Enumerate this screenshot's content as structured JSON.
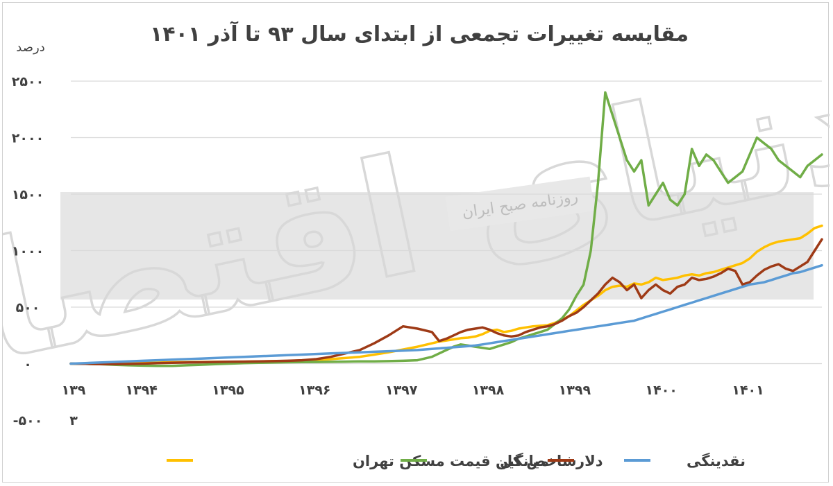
{
  "chart_data": {
    "type": "line",
    "title": "مقایسه تغییرات تجمعی از ابتدای سال ۹۳ تا آذر ۱۴۰۱",
    "ylabel": "درصد",
    "xlabel": "",
    "ylim": [
      -500,
      2500
    ],
    "y_ticks": [
      -500,
      0,
      500,
      1000,
      1500,
      2000,
      2500
    ],
    "y_tick_labels": [
      "-۵۰۰",
      "۰",
      "۵۰۰",
      "۱۰۰۰",
      "۱۵۰۰",
      "۲۰۰۰",
      "۲۵۰۰"
    ],
    "x_range": [
      0,
      104
    ],
    "x_ticks": [
      0,
      9,
      21,
      33,
      45,
      57,
      69,
      81,
      93
    ],
    "x_tick_labels": [
      "۱۳۹\n۳",
      "۱۳۹۴",
      "۱۳۹۵",
      "۱۳۹۶",
      "۱۳۹۷",
      "۱۳۹۸",
      "۱۳۹۹",
      "۱۴۰۰",
      "۱۴۰۱"
    ],
    "grid": true,
    "legend_position": "bottom",
    "x": [
      0,
      2,
      4,
      6,
      8,
      10,
      12,
      14,
      16,
      18,
      20,
      22,
      24,
      26,
      28,
      30,
      32,
      34,
      36,
      38,
      40,
      42,
      44,
      46,
      48,
      50,
      51,
      52,
      53,
      54,
      55,
      56,
      57,
      58,
      59,
      60,
      61,
      62,
      63,
      64,
      65,
      66,
      67,
      68,
      69,
      70,
      71,
      72,
      73,
      74,
      75,
      76,
      77,
      78,
      79,
      80,
      81,
      82,
      83,
      84,
      85,
      86,
      87,
      88,
      89,
      90,
      91,
      92,
      93,
      94,
      95,
      96,
      97,
      98,
      99,
      100,
      101,
      102,
      103,
      104
    ],
    "series": [
      {
        "name": "میانگین قیمت مسکن تهران",
        "color": "#ffc000",
        "values": [
          0,
          0,
          0,
          2,
          5,
          8,
          10,
          12,
          14,
          15,
          16,
          17,
          18,
          20,
          22,
          24,
          28,
          32,
          40,
          50,
          60,
          80,
          100,
          125,
          150,
          180,
          195,
          205,
          215,
          225,
          230,
          240,
          260,
          290,
          300,
          280,
          290,
          310,
          320,
          330,
          335,
          340,
          360,
          390,
          420,
          470,
          520,
          560,
          600,
          650,
          680,
          690,
          680,
          710,
          700,
          720,
          760,
          740,
          750,
          760,
          780,
          790,
          780,
          800,
          810,
          830,
          850,
          870,
          890,
          930,
          990,
          1030,
          1060,
          1080,
          1090,
          1100,
          1110,
          1150,
          1200,
          1220
        ]
      },
      {
        "name": "شاخص کل",
        "color": "#70ad47",
        "values": [
          0,
          -2,
          -5,
          -10,
          -15,
          -18,
          -20,
          -20,
          -15,
          -10,
          -5,
          0,
          5,
          8,
          10,
          12,
          14,
          15,
          16,
          18,
          20,
          20,
          22,
          25,
          30,
          60,
          90,
          120,
          150,
          170,
          160,
          150,
          140,
          130,
          150,
          170,
          190,
          220,
          240,
          260,
          280,
          300,
          350,
          400,
          480,
          600,
          700,
          1000,
          1600,
          2400,
          2200,
          2000,
          1800,
          1700,
          1800,
          1400,
          1500,
          1600,
          1450,
          1400,
          1500,
          1900,
          1750,
          1850,
          1800,
          1700,
          1600,
          1650,
          1700,
          1850,
          2000,
          1950,
          1900,
          1800,
          1750,
          1700,
          1650,
          1750,
          1800,
          1850
        ]
      },
      {
        "name": "دلار",
        "color": "#9e3a16",
        "values": [
          0,
          -2,
          -4,
          -5,
          -3,
          0,
          5,
          8,
          10,
          12,
          15,
          17,
          18,
          20,
          22,
          25,
          30,
          40,
          60,
          90,
          120,
          180,
          250,
          330,
          310,
          280,
          200,
          220,
          250,
          280,
          300,
          310,
          320,
          300,
          270,
          250,
          240,
          250,
          280,
          300,
          320,
          330,
          350,
          380,
          420,
          450,
          500,
          560,
          620,
          700,
          760,
          720,
          650,
          700,
          580,
          650,
          700,
          650,
          620,
          680,
          700,
          760,
          740,
          750,
          770,
          800,
          840,
          820,
          700,
          720,
          780,
          830,
          860,
          880,
          840,
          820,
          860,
          900,
          1000,
          1100
        ]
      },
      {
        "name": "نقدینگی",
        "color": "#5b9bd5",
        "values": [
          0,
          5,
          10,
          15,
          20,
          25,
          30,
          35,
          40,
          45,
          50,
          55,
          60,
          65,
          70,
          75,
          80,
          85,
          90,
          95,
          100,
          105,
          110,
          115,
          120,
          130,
          135,
          140,
          145,
          150,
          155,
          160,
          170,
          180,
          190,
          200,
          210,
          220,
          230,
          240,
          250,
          260,
          270,
          280,
          290,
          300,
          310,
          320,
          330,
          340,
          350,
          360,
          370,
          380,
          400,
          420,
          440,
          460,
          480,
          500,
          520,
          540,
          560,
          580,
          600,
          620,
          640,
          660,
          680,
          700,
          710,
          720,
          740,
          760,
          780,
          800,
          810,
          830,
          850,
          870
        ]
      }
    ]
  },
  "watermark": {
    "logo_text": "دنیای اقتصاد",
    "subtitle": "روزنامه صبح ایران"
  }
}
